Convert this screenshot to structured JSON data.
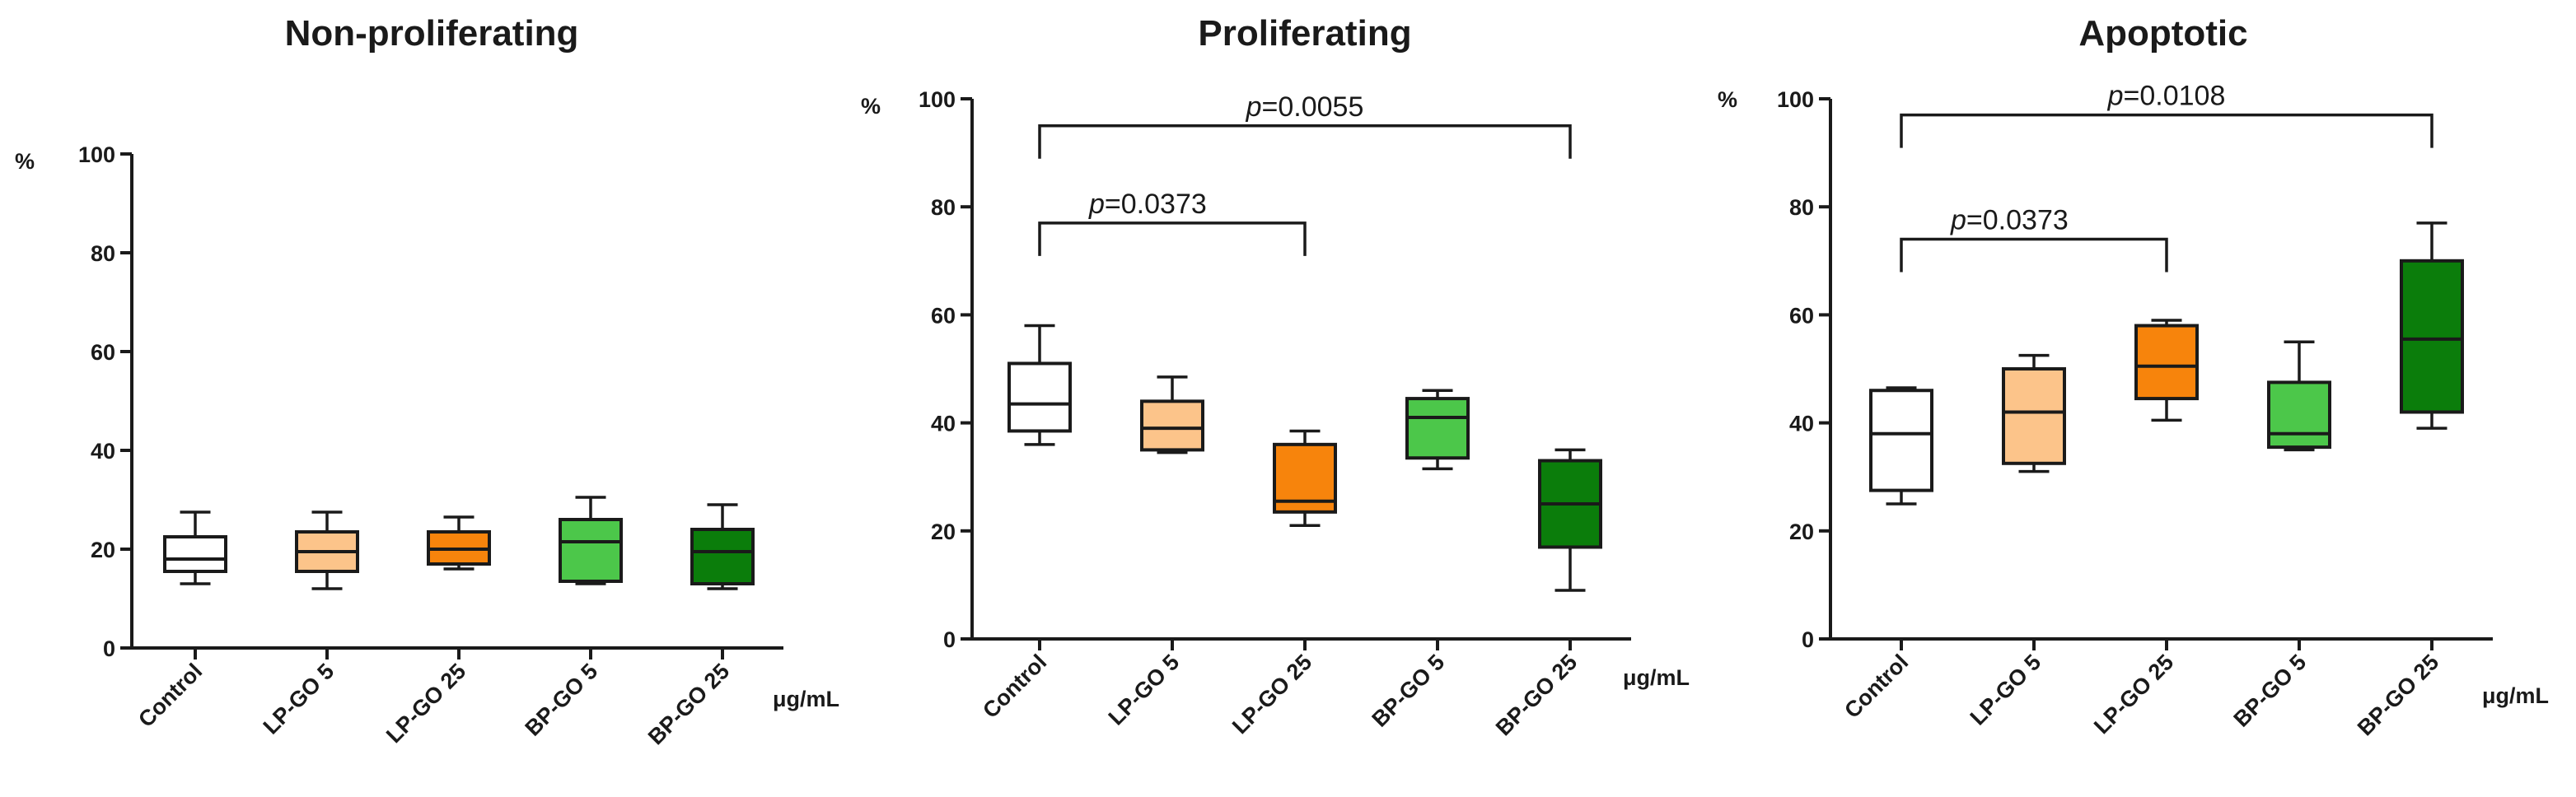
{
  "chart_data": [
    {
      "type": "boxplot",
      "title": "Non-proliferating",
      "ylabel": "%",
      "xlabel_unit": "μg/mL",
      "ylim": [
        0,
        100
      ],
      "yticks": [
        "0",
        "20",
        "40",
        "60",
        "80",
        "100"
      ],
      "categories": [
        "Control",
        "LP-GO 5",
        "LP-GO 25",
        "BP-GO 5",
        "BP-GO 25"
      ],
      "boxes": [
        {
          "min": 13,
          "q1": 15.5,
          "median": 18,
          "q3": 22.5,
          "max": 27.5
        },
        {
          "min": 12,
          "q1": 15.5,
          "median": 19.5,
          "q3": 23.5,
          "max": 27.5
        },
        {
          "min": 16,
          "q1": 17,
          "median": 20,
          "q3": 23.5,
          "max": 26.5
        },
        {
          "min": 13,
          "q1": 13.5,
          "median": 21.5,
          "q3": 26,
          "max": 30.5
        },
        {
          "min": 12,
          "q1": 13,
          "median": 19.5,
          "q3": 24,
          "max": 29
        }
      ],
      "comparisons": []
    },
    {
      "type": "boxplot",
      "title": "Proliferating",
      "ylabel": "%",
      "xlabel_unit": "μg/mL",
      "ylim": [
        0,
        100
      ],
      "yticks": [
        "0",
        "20",
        "40",
        "60",
        "80",
        "100"
      ],
      "categories": [
        "Control",
        "LP-GO 5",
        "LP-GO 25",
        "BP-GO 5",
        "BP-GO 25"
      ],
      "boxes": [
        {
          "min": 36,
          "q1": 38.5,
          "median": 43.5,
          "q3": 51,
          "max": 58
        },
        {
          "min": 34.5,
          "q1": 35,
          "median": 39,
          "q3": 44,
          "max": 48.5
        },
        {
          "min": 21,
          "q1": 23.5,
          "median": 25.5,
          "q3": 36,
          "max": 38.5
        },
        {
          "min": 31.5,
          "q1": 33.5,
          "median": 41,
          "q3": 44.5,
          "max": 46
        },
        {
          "min": 9,
          "q1": 17,
          "median": 25,
          "q3": 33,
          "max": 35
        }
      ],
      "comparisons": [
        {
          "from": 0,
          "to": 2,
          "level": 77,
          "label_prefix": "p",
          "label_value": "=0.0373"
        },
        {
          "from": 0,
          "to": 4,
          "level": 95,
          "label_prefix": "p",
          "label_value": "=0.0055"
        }
      ]
    },
    {
      "type": "boxplot",
      "title": "Apoptotic",
      "ylabel": "%",
      "xlabel_unit": "μg/mL",
      "ylim": [
        0,
        100
      ],
      "yticks": [
        "0",
        "20",
        "40",
        "60",
        "80",
        "100"
      ],
      "categories": [
        "Control",
        "LP-GO 5",
        "LP-GO 25",
        "BP-GO 5",
        "BP-GO 25"
      ],
      "boxes": [
        {
          "min": 25,
          "q1": 27.5,
          "median": 38,
          "q3": 46,
          "max": 46.5
        },
        {
          "min": 31,
          "q1": 32.5,
          "median": 42,
          "q3": 50,
          "max": 52.5
        },
        {
          "min": 40.5,
          "q1": 44.5,
          "median": 50.5,
          "q3": 58,
          "max": 59
        },
        {
          "min": 35,
          "q1": 35.5,
          "median": 38,
          "q3": 47.5,
          "max": 55
        },
        {
          "min": 39,
          "q1": 42,
          "median": 55.5,
          "q3": 70,
          "max": 77
        }
      ],
      "comparisons": [
        {
          "from": 0,
          "to": 2,
          "level": 74,
          "label_prefix": "p",
          "label_value": "=0.0373"
        },
        {
          "from": 0,
          "to": 4,
          "level": 97,
          "label_prefix": "p",
          "label_value": "=0.0108"
        }
      ]
    }
  ],
  "colors": {
    "box_fills": [
      "#ffffff",
      "#fcc48a",
      "#f7840c",
      "#4cc74a",
      "#0b7d0b"
    ],
    "stroke": "#1a1a1a"
  }
}
